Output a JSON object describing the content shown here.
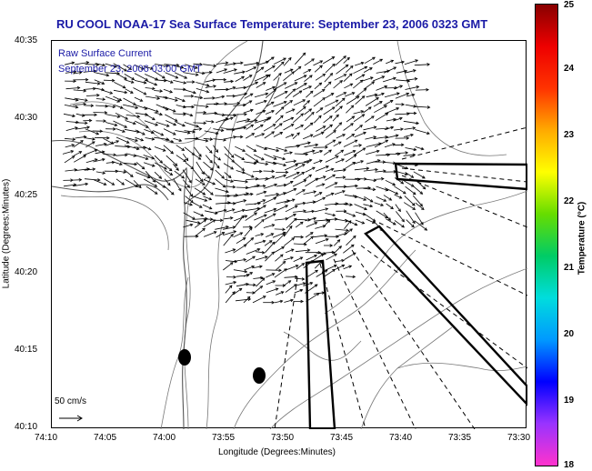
{
  "title": "RU COOL  NOAA-17  Sea Surface Temperature:  September 23, 2006 0323 GMT",
  "inset_legend": {
    "line1": "Raw Surface Current",
    "line2": "September 23, 2006 03:00 GMT"
  },
  "scale_arrow": {
    "label": "50 cm/s",
    "speed_cm_s": 50
  },
  "axes": {
    "x_label": "Longitude (Degrees:Minutes)",
    "y_label": "Latitude (Degrees:Minutes)",
    "x_ticks": [
      "74:10",
      "74:05",
      "74:00",
      "73:55",
      "73:50",
      "73:45",
      "73:40",
      "73:35",
      "73:30"
    ],
    "y_ticks": [
      "40:35",
      "40:30",
      "40:25",
      "40:20",
      "40:15",
      "40:10"
    ]
  },
  "colorbar": {
    "title": "Temperature (°C)",
    "ticks": [
      "25",
      "24",
      "23",
      "22",
      "21",
      "20",
      "19",
      "18"
    ],
    "range": [
      18,
      25
    ],
    "colors": [
      "#ff33cc",
      "#9933ff",
      "#0000ff",
      "#0099ff",
      "#00dddd",
      "#00cc66",
      "#66dd00",
      "#ffff00",
      "#ffaa00",
      "#ff3300",
      "#ee0000",
      "#880000"
    ]
  },
  "colors": {
    "title": "#1a1aa6",
    "legend": "#1a1aa6",
    "arrows": "#000000",
    "contours": "#666666"
  }
}
